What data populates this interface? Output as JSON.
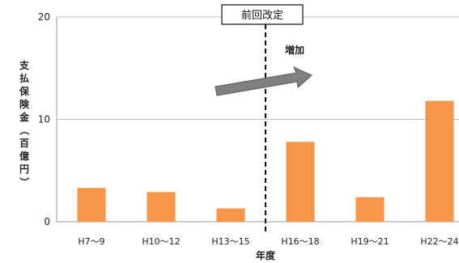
{
  "chart_data": {
    "type": "bar",
    "categories": [
      "H7〜9",
      "H10〜12",
      "H13〜15",
      "H16〜18",
      "H19〜21",
      "H22〜24"
    ],
    "values": [
      3.3,
      2.9,
      1.3,
      7.8,
      2.4,
      11.8
    ],
    "xlabel": "年度",
    "ylabel": "支払保険金（百億円）",
    "ylim": [
      0,
      20
    ],
    "yticks": [
      0,
      10,
      20
    ],
    "grid": true,
    "bar_color": "#f79646",
    "annotations": {
      "revision_label": "前回改定",
      "revision_after_category": "H13〜15",
      "trend_label": "増加"
    }
  }
}
